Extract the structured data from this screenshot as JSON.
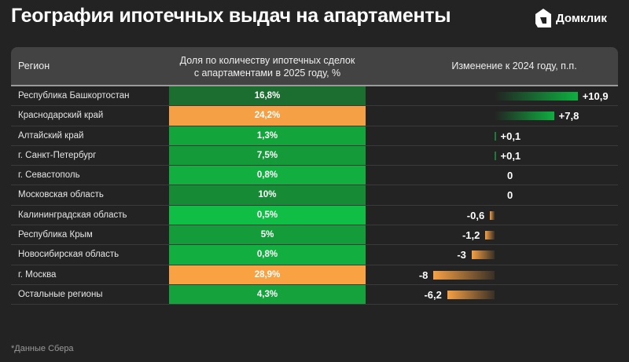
{
  "title": "География ипотечных выдач на апартаменты",
  "brand": "Домклик",
  "footnote": "*Данные Сбера",
  "chart_data": {
    "type": "table",
    "headers": [
      "Регион",
      "Доля по количеству ипотечных сделок с апартаментами в 2025 году, %",
      "Изменение к 2024 году, п.п."
    ],
    "header_share_line1": "Доля по количеству ипотечных сделок",
    "header_share_line2": "с апартаментами в 2025 году, %",
    "rows": [
      {
        "region": "Республика Башкортостан",
        "share": "16,8%",
        "change": 10.9,
        "change_label": "+10,9",
        "color": "#1b6d30"
      },
      {
        "region": "Краснодарский край",
        "share": "24,2%",
        "change": 7.8,
        "change_label": "+7,8",
        "color": "#f5a044"
      },
      {
        "region": "Алтайский край",
        "share": "1,3%",
        "change": 0.1,
        "change_label": "+0,1",
        "color": "#13a53c"
      },
      {
        "region": "г. Санкт-Петербург",
        "share": "7,5%",
        "change": 0.1,
        "change_label": "+0,1",
        "color": "#149a39"
      },
      {
        "region": "г. Севастополь",
        "share": "0,8%",
        "change": 0,
        "change_label": "0",
        "color": "#12ae40"
      },
      {
        "region": "Московская область",
        "share": "10%",
        "change": 0,
        "change_label": "0",
        "color": "#168a35"
      },
      {
        "region": "Калининградская область",
        "share": "0,5%",
        "change": -0.6,
        "change_label": "-0,6",
        "color": "#10bd45"
      },
      {
        "region": "Республика Крым",
        "share": "5%",
        "change": -1.2,
        "change_label": "-1,2",
        "color": "#149c3a"
      },
      {
        "region": "Новосибирская область",
        "share": "0,8%",
        "change": -3,
        "change_label": "-3",
        "color": "#12ae40"
      },
      {
        "region": "г. Москва",
        "share": "28,9%",
        "change": -8,
        "change_label": "-8",
        "color": "#f8a243"
      },
      {
        "region": "Остальные регионы",
        "share": "4,3%",
        "change": -6.2,
        "change_label": "-6,2",
        "color": "#15a23c"
      }
    ]
  }
}
